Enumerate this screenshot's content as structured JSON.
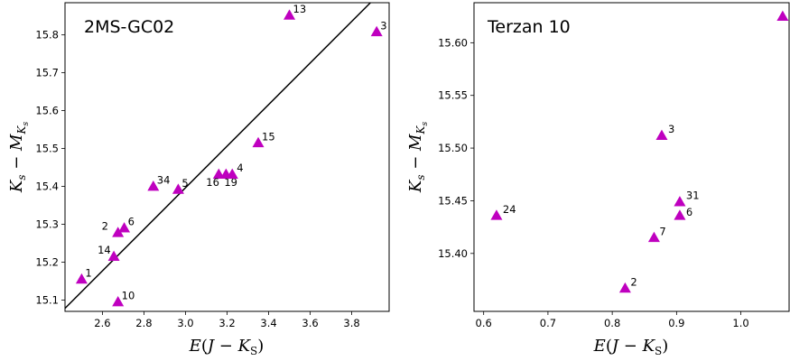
{
  "chart_data": [
    {
      "type": "scatter",
      "title": "2MS-GC02",
      "xlabel": "E(J − K_S)",
      "ylabel": "K_s − M_{K_s}",
      "xlim": [
        2.42,
        3.98
      ],
      "ylim": [
        15.07,
        15.885
      ],
      "xticks": [
        "2.6",
        "2.8",
        "3.0",
        "3.2",
        "3.4",
        "3.6",
        "3.8"
      ],
      "yticks": [
        "15.1",
        "15.2",
        "15.3",
        "15.4",
        "15.5",
        "15.6",
        "15.7",
        "15.8"
      ],
      "marker_color": "#bf00bf",
      "points": [
        {
          "label": "1",
          "x": 2.5,
          "y": 15.155
        },
        {
          "label": "10",
          "x": 2.675,
          "y": 15.095
        },
        {
          "label": "14",
          "x": 2.655,
          "y": 15.215
        },
        {
          "label": "2",
          "x": 2.675,
          "y": 15.278
        },
        {
          "label": "6",
          "x": 2.705,
          "y": 15.29
        },
        {
          "label": "34",
          "x": 2.845,
          "y": 15.4
        },
        {
          "label": "5",
          "x": 2.965,
          "y": 15.392
        },
        {
          "label": "16",
          "x": 3.16,
          "y": 15.432
        },
        {
          "label": "19",
          "x": 3.195,
          "y": 15.432
        },
        {
          "label": "4",
          "x": 3.225,
          "y": 15.432
        },
        {
          "label": "15",
          "x": 3.35,
          "y": 15.515
        },
        {
          "label": "13",
          "x": 3.5,
          "y": 15.852
        },
        {
          "label": "3",
          "x": 3.92,
          "y": 15.808
        }
      ],
      "fit_line": {
        "color": "#000000",
        "x": [
          2.42,
          3.89
        ],
        "y": [
          15.078,
          15.885
        ]
      }
    },
    {
      "type": "scatter",
      "title": "Terzan 10",
      "xlabel": "E(J − K_S)",
      "ylabel": "K_s − M_{K_s}",
      "xlim": [
        0.585,
        1.075
      ],
      "ylim": [
        15.345,
        15.638
      ],
      "xticks": [
        "0.6",
        "0.7",
        "0.8",
        "0.9",
        "1.0"
      ],
      "yticks": [
        "15.40",
        "15.45",
        "15.50",
        "15.55",
        "15.60"
      ],
      "marker_color": "#bf00bf",
      "points": [
        {
          "label": "24",
          "x": 0.62,
          "y": 15.436
        },
        {
          "label": "2",
          "x": 0.82,
          "y": 15.367
        },
        {
          "label": "7",
          "x": 0.865,
          "y": 15.415
        },
        {
          "label": "3",
          "x": 0.877,
          "y": 15.512
        },
        {
          "label": "31",
          "x": 0.905,
          "y": 15.449
        },
        {
          "label": "6",
          "x": 0.905,
          "y": 15.436
        },
        {
          "label": "",
          "x": 1.065,
          "y": 15.625
        }
      ]
    }
  ]
}
